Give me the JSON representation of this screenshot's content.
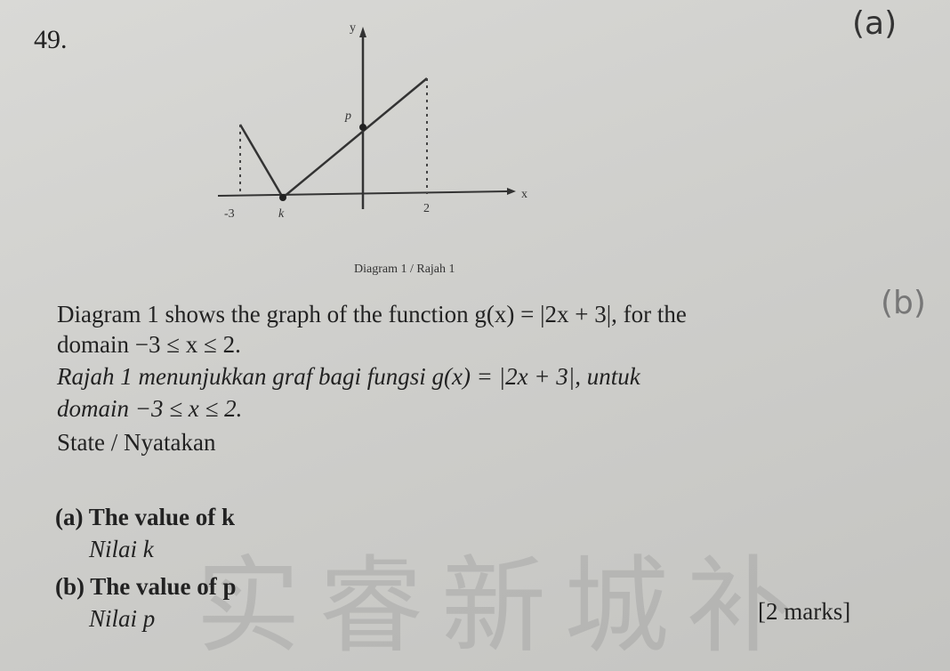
{
  "question_number": "49.",
  "handwritten": {
    "part_a": "(a)",
    "part_b": "(b)"
  },
  "diagram": {
    "y_label": "y",
    "x_label": "x",
    "point_label": "p",
    "x_ticks": [
      "-3",
      "k",
      "2"
    ],
    "caption": "Diagram 1 / Rajah 1"
  },
  "text": {
    "english": [
      "Diagram 1 shows the graph of the function g(x) = |2x + 3|, for the",
      "domain −3 ≤ x ≤ 2."
    ],
    "malay": [
      "Rajah 1 menunjukkan graf bagi fungsi g(x) = |2x + 3|, untuk",
      "domain −3 ≤ x ≤ 2."
    ],
    "instruction": "State / Nyatakan",
    "parts": [
      {
        "english": "(a) The value of k",
        "malay": "Nilai k"
      },
      {
        "english": "(b) The value of p",
        "malay": "Nilai p"
      }
    ],
    "marks": "[2 marks]"
  },
  "watermark": "实睿新城补"
}
